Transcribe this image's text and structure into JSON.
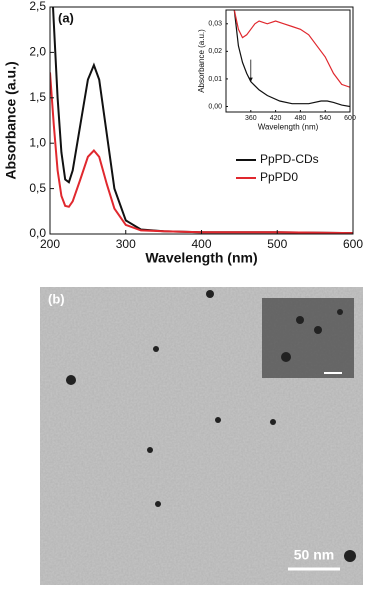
{
  "chart_data": [
    {
      "type": "line",
      "panel_label": "(a)",
      "xlabel": "Wavelength (nm)",
      "ylabel": "Absorbance (a.u.)",
      "xlim": [
        200,
        600
      ],
      "ylim": [
        0,
        2.5
      ],
      "xticks": [
        200,
        300,
        400,
        500,
        600
      ],
      "yticks": [
        {
          "value": 0,
          "label": "0,0"
        },
        {
          "value": 0.5,
          "label": "0,5"
        },
        {
          "value": 1,
          "label": "1,0"
        },
        {
          "value": 1.5,
          "label": "1,5"
        },
        {
          "value": 2,
          "label": "2,0"
        },
        {
          "value": 2.5,
          "label": "2,5"
        }
      ],
      "legend": "center-right",
      "series": [
        {
          "name": "PpPD-CDs",
          "color": "#111111",
          "x": [
            204,
            210,
            215,
            220,
            225,
            230,
            240,
            250,
            258,
            265,
            275,
            285,
            300,
            320,
            350,
            400,
            500,
            600
          ],
          "values": [
            2.5,
            1.5,
            0.9,
            0.6,
            0.57,
            0.7,
            1.2,
            1.7,
            1.86,
            1.7,
            1.1,
            0.5,
            0.15,
            0.05,
            0.03,
            0.02,
            0.02,
            0.01
          ]
        },
        {
          "name": "PpPD0",
          "color": "#e0282e",
          "x": [
            200,
            205,
            210,
            215,
            220,
            225,
            230,
            240,
            250,
            258,
            265,
            275,
            285,
            300,
            320,
            350,
            400,
            500,
            600
          ],
          "values": [
            1.78,
            1.2,
            0.7,
            0.42,
            0.31,
            0.3,
            0.36,
            0.6,
            0.85,
            0.92,
            0.85,
            0.55,
            0.28,
            0.1,
            0.04,
            0.03,
            0.02,
            0.02,
            0.01
          ]
        }
      ]
    },
    {
      "type": "line",
      "xlabel": "Wavelength (nm)",
      "ylabel": "Absorbance (a.u.)",
      "xlim": [
        300,
        600
      ],
      "ylim": [
        -0.002,
        0.035
      ],
      "xticks": [
        360,
        420,
        480,
        540,
        600
      ],
      "yticks": [
        {
          "value": 0,
          "label": "0,00"
        },
        {
          "value": 0.01,
          "label": "0,01"
        },
        {
          "value": 0.02,
          "label": "0,02"
        },
        {
          "value": 0.03,
          "label": "0,03"
        }
      ],
      "series": [
        {
          "color": "#111111",
          "x": [
            320,
            330,
            340,
            350,
            360,
            380,
            400,
            430,
            460,
            500,
            530,
            545,
            560,
            580,
            600
          ],
          "values": [
            0.035,
            0.022,
            0.016,
            0.012,
            0.009,
            0.006,
            0.004,
            0.002,
            0.001,
            0.001,
            0.002,
            0.002,
            0.0015,
            0.0005,
            0
          ]
        },
        {
          "color": "#e0282e",
          "x": [
            320,
            330,
            340,
            350,
            360,
            370,
            380,
            400,
            420,
            440,
            460,
            480,
            500,
            520,
            540,
            560,
            580,
            600
          ],
          "values": [
            0.035,
            0.028,
            0.025,
            0.026,
            0.028,
            0.03,
            0.031,
            0.03,
            0.031,
            0.03,
            0.029,
            0.028,
            0.026,
            0.022,
            0.018,
            0.012,
            0.008,
            0.007
          ]
        }
      ]
    }
  ],
  "image": {
    "panel_label": "(b)",
    "scale_bar": "50 nm"
  }
}
